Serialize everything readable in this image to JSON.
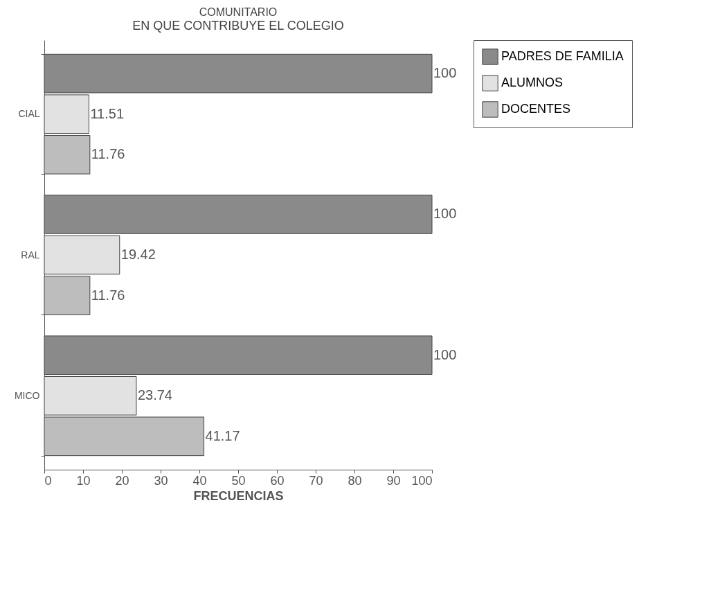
{
  "chart_data": {
    "type": "bar",
    "orientation": "horizontal",
    "title": "COMUNITARIO",
    "subtitle": "EN QUE CONTRIBUYE EL COLEGIO",
    "xlabel": "FRECUENCIAS",
    "categories": [
      "CIAL",
      "RAL",
      "MICO"
    ],
    "series": [
      {
        "name": "PADRES DE FAMILIA",
        "color": "#8a8a8a",
        "values": [
          100,
          100,
          100
        ]
      },
      {
        "name": "ALUMNOS",
        "color": "#e2e2e2",
        "values": [
          11.51,
          19.42,
          23.74
        ]
      },
      {
        "name": "DOCENTES",
        "color": "#bdbdbd",
        "values": [
          11.76,
          11.76,
          41.17
        ]
      }
    ],
    "xlim": [
      0,
      100
    ],
    "xticks": [
      0,
      10,
      20,
      30,
      40,
      50,
      60,
      70,
      80,
      90,
      100
    ],
    "legend": "top right",
    "data_labels": true
  }
}
